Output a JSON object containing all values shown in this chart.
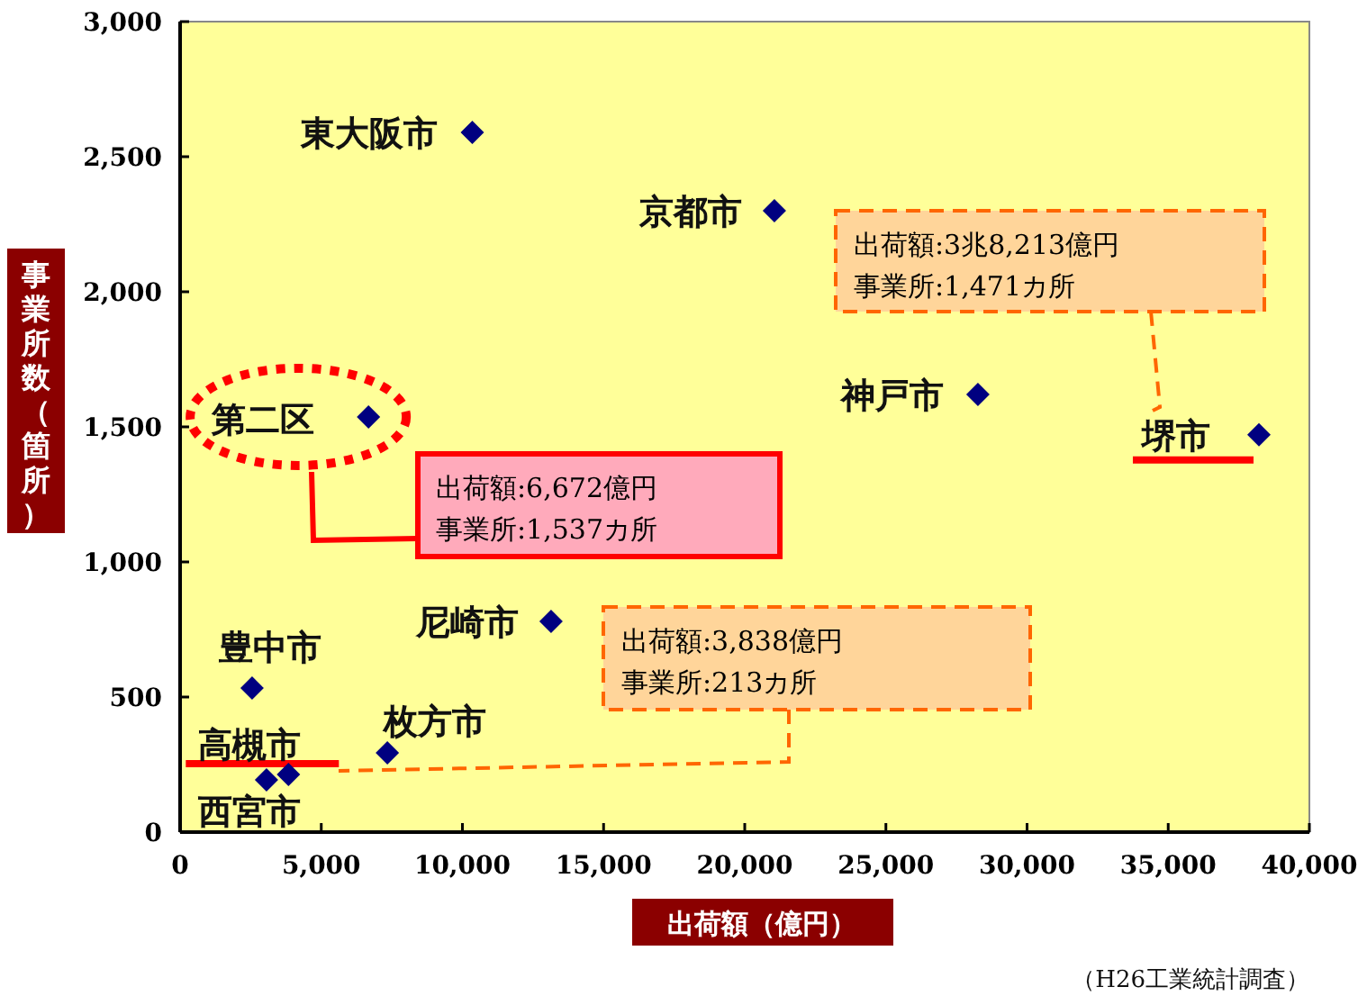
{
  "chart_data": {
    "type": "scatter",
    "xlabel": "出荷額（億円）",
    "ylabel": "事業所数（箇所）",
    "marker": "diamond",
    "grid": false,
    "series": [
      {
        "color": "#000080",
        "x": [
          10350,
          21050,
          28260,
          38213,
          6672,
          13140,
          2550,
          7340,
          3838,
          3060
        ],
        "values": [
          2590,
          2300,
          1620,
          1471,
          1537,
          780,
          533,
          293,
          213,
          193
        ]
      }
    ],
    "xlim": [
      0,
      40000
    ],
    "ylim": [
      0,
      3000
    ],
    "xticks": [
      0,
      {
        "value": 5000,
        "label": "5,000"
      },
      {
        "value": 10000,
        "label": "10,000"
      },
      {
        "value": 15000,
        "label": "15,000"
      },
      {
        "value": 20000,
        "label": "20,000"
      },
      {
        "value": 25000,
        "label": "25,000"
      },
      {
        "value": 30000,
        "label": "30,000"
      },
      {
        "value": 35000,
        "label": "35,000"
      },
      {
        "value": 40000,
        "label": "40,000"
      }
    ],
    "yticks": [
      0,
      500,
      {
        "value": 1000,
        "label": "1,000"
      },
      {
        "value": 1500,
        "label": "1,500"
      },
      {
        "value": 2000,
        "label": "2,000"
      },
      {
        "value": 2500,
        "label": "2,500"
      },
      {
        "value": 3000,
        "label": "3,000"
      }
    ],
    "annotations": [
      {
        "text": "東大阪市",
        "x": 10350,
        "y": 2590
      },
      {
        "text": "京都市",
        "x": 21050,
        "y": 2300
      },
      {
        "text": "神戸市",
        "x": 28260,
        "y": 1620
      },
      {
        "text": "堺市",
        "x": 38213,
        "y": 1471
      },
      {
        "text": "第二区",
        "x": 6672,
        "y": 1537
      },
      {
        "text": "尼崎市",
        "x": 13140,
        "y": 780
      },
      {
        "text": "豊中市",
        "x": 2550,
        "y": 533
      },
      {
        "text": "枚方市",
        "x": 7340,
        "y": 293
      },
      {
        "text": "高槻市",
        "x": 3838,
        "y": 213
      },
      {
        "text": "西宮市",
        "x": 3060,
        "y": 193
      },
      "出荷額:6,672億円",
      "事業所:1,537カ所",
      "出荷額:3,838億円",
      "事業所:213カ所",
      "出荷額:3兆8,213億円",
      "事業所:1,471カ所",
      "（H26工業統計調査）"
    ]
  }
}
